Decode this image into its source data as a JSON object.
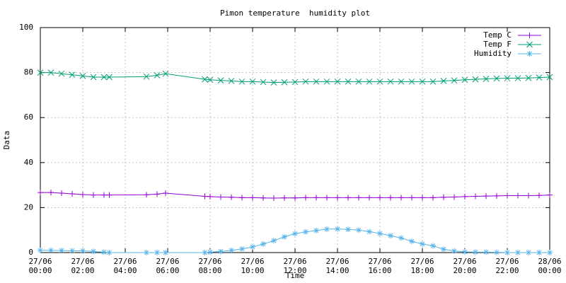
{
  "chart_data": {
    "type": "line",
    "title": "Pimon temperature  humidity plot",
    "x_label": "Time",
    "y_label": "Data",
    "x": [
      0,
      0.5,
      1,
      1.5,
      2,
      2.5,
      3,
      3.25,
      5,
      5.5,
      5.9,
      7.75,
      8,
      8.5,
      9,
      9.5,
      10,
      10.5,
      11,
      11.5,
      12,
      12.5,
      13,
      13.5,
      14,
      14.5,
      15,
      15.5,
      16,
      16.5,
      17,
      17.5,
      18,
      18.5,
      19,
      19.5,
      20,
      20.5,
      21,
      21.5,
      22,
      22.5,
      23,
      23.5,
      24
    ],
    "series": [
      {
        "name": "Temp C",
        "color": "#9400d3",
        "marker": "plus",
        "values": [
          26.7,
          26.7,
          26.4,
          26.1,
          25.8,
          25.6,
          25.6,
          25.6,
          25.7,
          26,
          26.4,
          25,
          24.9,
          24.7,
          24.6,
          24.4,
          24.4,
          24.3,
          24.2,
          24.3,
          24.3,
          24.4,
          24.4,
          24.4,
          24.4,
          24.4,
          24.4,
          24.4,
          24.4,
          24.4,
          24.4,
          24.4,
          24.4,
          24.4,
          24.6,
          24.7,
          24.9,
          25,
          25.1,
          25.2,
          25.3,
          25.3,
          25.3,
          25.4,
          25.6
        ]
      },
      {
        "name": "Temp F",
        "color": "#009e73",
        "marker": "cross",
        "values": [
          80,
          80,
          79.5,
          79,
          78.5,
          78,
          78,
          78,
          78.2,
          78.8,
          79.5,
          77,
          76.8,
          76.5,
          76.3,
          76,
          76,
          75.8,
          75.6,
          75.7,
          75.8,
          76,
          76,
          76,
          76,
          76,
          76,
          76,
          76,
          76,
          76,
          76,
          76,
          76,
          76.3,
          76.5,
          76.8,
          77,
          77.2,
          77.4,
          77.5,
          77.5,
          77.6,
          77.8,
          78
        ]
      },
      {
        "name": "Humidity",
        "color": "#56b4e9",
        "marker": "star",
        "values": [
          1,
          1,
          0.9,
          0.8,
          0.8,
          0.5,
          0.2,
          0,
          0,
          0,
          0,
          0,
          0.2,
          0.5,
          1,
          1.6,
          2.5,
          3.8,
          5.3,
          7,
          8.4,
          9.2,
          9.8,
          10.4,
          10.5,
          10.3,
          10,
          9.3,
          8.5,
          7.5,
          6.5,
          5,
          3.8,
          3,
          1.5,
          0.7,
          0.3,
          0.2,
          0.2,
          0.1,
          0,
          0,
          0,
          0,
          0
        ]
      }
    ],
    "xlim": [
      0,
      24
    ],
    "xticks": [
      {
        "value": 0,
        "label": "27/06\n00:00"
      },
      {
        "value": 2,
        "label": "27/06\n02:00"
      },
      {
        "value": 4,
        "label": "27/06\n04:00"
      },
      {
        "value": 6,
        "label": "27/06\n06:00"
      },
      {
        "value": 8,
        "label": "27/06\n08:00"
      },
      {
        "value": 10,
        "label": "27/06\n10:00"
      },
      {
        "value": 12,
        "label": "27/06\n12:00"
      },
      {
        "value": 14,
        "label": "27/06\n14:00"
      },
      {
        "value": 16,
        "label": "27/06\n16:00"
      },
      {
        "value": 18,
        "label": "27/06\n18:00"
      },
      {
        "value": 20,
        "label": "27/06\n20:00"
      },
      {
        "value": 22,
        "label": "27/06\n22:00"
      },
      {
        "value": 24,
        "label": "28/06\n00:00"
      }
    ],
    "ylim": [
      0,
      100
    ],
    "yticks": [
      0,
      20,
      40,
      60,
      80,
      100
    ],
    "grid": true,
    "legend": "top-right"
  }
}
